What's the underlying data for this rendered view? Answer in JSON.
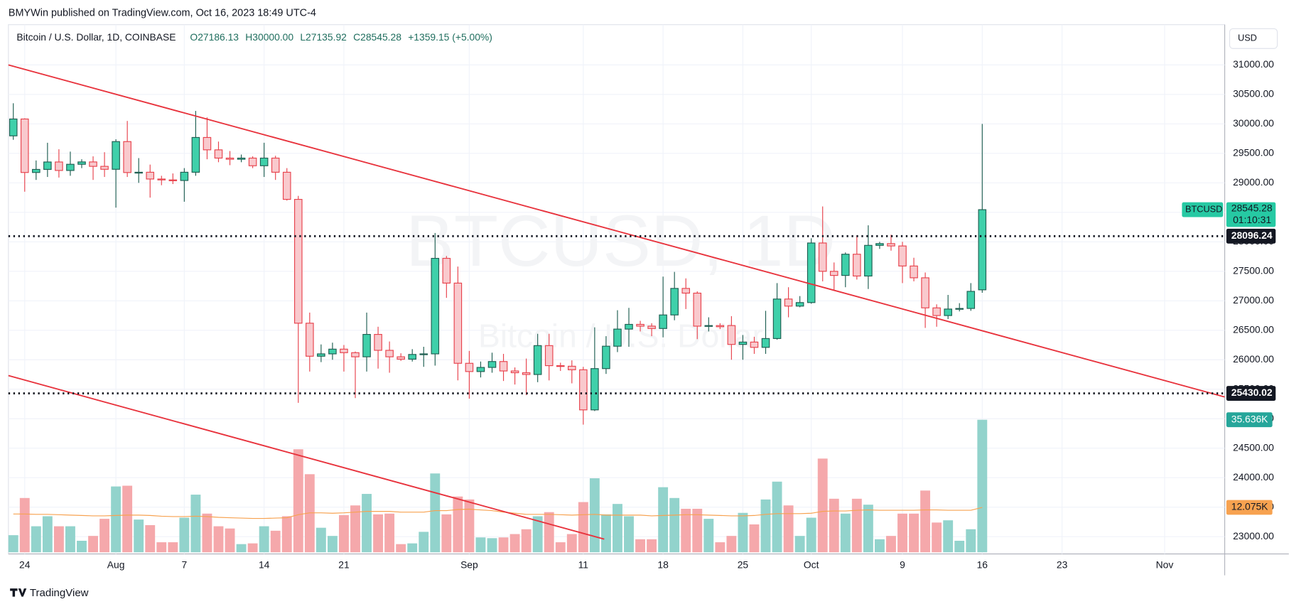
{
  "header": {
    "published": "BMYWin published on TradingView.com, Oct 16, 2023 18:49 UTC-4",
    "brand": "TradingView",
    "currency": "USD"
  },
  "chart_data": {
    "type": "candlestick",
    "legend_title": "Bitcoin / U.S. Dollar, 1D, COINBASE",
    "legend_values": [
      "O27186.13",
      "H30000.00",
      "L27135.92",
      "C28545.28",
      "+1359.15 (+5.00%)"
    ],
    "watermark": [
      "BTCUSD, 1D",
      "Bitcoin / U.S. Dollar"
    ],
    "symbol": "BTCUSD",
    "countdown": "01:10:31",
    "up_color": "#3fd0aa",
    "down_color": "#f9c9cd",
    "up_border": "#1f5f52",
    "down_border": "#e8434d",
    "volume_up_color": "#92d3cc",
    "volume_down_color": "#f5a8ab",
    "ma_color": "#f7a250",
    "xlim": [
      -0.43,
      106.27
    ],
    "xticks": [
      {
        "value": 1,
        "label": "24"
      },
      {
        "value": 9,
        "label": "Aug"
      },
      {
        "value": 15,
        "label": "7"
      },
      {
        "value": 22,
        "label": "14"
      },
      {
        "value": 29,
        "label": "21"
      },
      {
        "value": 40,
        "label": "Sep"
      },
      {
        "value": 50,
        "label": "11"
      },
      {
        "value": 57,
        "label": "18"
      },
      {
        "value": 64,
        "label": "25"
      },
      {
        "value": 70,
        "label": "Oct"
      },
      {
        "value": 78,
        "label": "9"
      },
      {
        "value": 85,
        "label": "16"
      },
      {
        "value": 92,
        "label": "23"
      },
      {
        "value": 101,
        "label": "Nov"
      }
    ],
    "ylim": [
      22707,
      31683
    ],
    "yticks": [
      {
        "value": 23000,
        "label": "23000.00"
      },
      {
        "value": 23500,
        "label": "23500.00"
      },
      {
        "value": 24000,
        "label": "24000.00"
      },
      {
        "value": 24500,
        "label": "24500.00"
      },
      {
        "value": 25000,
        "label": "25000.00"
      },
      {
        "value": 25500,
        "label": "25500.00"
      },
      {
        "value": 26000,
        "label": "26000.00"
      },
      {
        "value": 26500,
        "label": "26500.00"
      },
      {
        "value": 27000,
        "label": "27000.00"
      },
      {
        "value": 27500,
        "label": "27500.00"
      },
      {
        "value": 28000,
        "label": "28000.00"
      },
      {
        "value": 28500,
        "label": "28500.00"
      },
      {
        "value": 29000,
        "label": "29000.00"
      },
      {
        "value": 29500,
        "label": "29500.00"
      },
      {
        "value": 30000,
        "label": "30000.00"
      },
      {
        "value": 30500,
        "label": "30500.00"
      },
      {
        "value": 31000,
        "label": "31000.00"
      }
    ],
    "grid": true,
    "price_lines": [
      28096.24,
      25430.02
    ],
    "open": [
      29797,
      30083,
      29176,
      29228,
      29354,
      29210,
      29315,
      29355,
      29280,
      29230,
      29700,
      29175,
      29180,
      29065,
      29050,
      29040,
      29180,
      29770,
      29560,
      29420,
      29400,
      29420,
      29290,
      29420,
      29180,
      28720,
      26620,
      26060,
      26100,
      26180,
      26120,
      26050,
      26430,
      26160,
      26050,
      26010,
      26090,
      26100,
      27720,
      27300,
      25940,
      25800,
      25870,
      25970,
      25810,
      25780,
      25750,
      26240,
      25900,
      25890,
      25830,
      25150,
      25850,
      26230,
      26520,
      26600,
      26570,
      26530,
      26760,
      27210,
      27130,
      26570,
      26580,
      26580,
      26260,
      26300,
      26210,
      26360,
      27030,
      26910,
      26970,
      27980,
      27500,
      27430,
      27790,
      27420,
      27940,
      27970,
      27930,
      27590,
      27390,
      26880,
      26750,
      26860,
      26870,
      27186.13
    ],
    "high": [
      30350,
      30095,
      29380,
      29680,
      29570,
      29530,
      29400,
      29450,
      29520,
      29740,
      30050,
      29420,
      29310,
      29120,
      29160,
      29250,
      30220,
      30110,
      29700,
      29540,
      29480,
      29450,
      29680,
      29460,
      29250,
      28780,
      26800,
      26260,
      26290,
      26250,
      26140,
      26800,
      26560,
      26310,
      26110,
      26180,
      26220,
      28150,
      27760,
      27580,
      26150,
      25970,
      26120,
      26100,
      25870,
      26020,
      26440,
      26440,
      25950,
      25990,
      25880,
      26550,
      26400,
      26840,
      26880,
      26660,
      26620,
      27410,
      27490,
      27380,
      27160,
      26720,
      26620,
      26740,
      26420,
      26390,
      26830,
      27300,
      27230,
      27080,
      28060,
      28600,
      27650,
      27820,
      28110,
      28280,
      28000,
      28120,
      28000,
      27730,
      27480,
      26940,
      27100,
      26960,
      27300,
      30000
    ],
    "low": [
      29730,
      28850,
      29050,
      29100,
      29090,
      29120,
      29250,
      29050,
      29100,
      28580,
      29100,
      29000,
      28750,
      28960,
      28980,
      28680,
      29120,
      29400,
      29350,
      29300,
      29350,
      29250,
      29100,
      29050,
      28700,
      25270,
      25800,
      25960,
      26000,
      25800,
      25350,
      25800,
      25850,
      25780,
      25980,
      25970,
      25880,
      25900,
      27050,
      25650,
      25340,
      25700,
      25780,
      25640,
      25580,
      25400,
      25620,
      25650,
      25810,
      25600,
      24900,
      25130,
      25760,
      26130,
      26220,
      26480,
      26400,
      26380,
      26670,
      26860,
      26350,
      26480,
      26520,
      26000,
      26000,
      26100,
      26100,
      26340,
      26720,
      26890,
      26950,
      27330,
      27170,
      27230,
      27360,
      27200,
      27880,
      27850,
      27300,
      27330,
      26540,
      26560,
      26690,
      26820,
      26830,
      27135.92
    ],
    "close": [
      30083,
      29176,
      29228,
      29354,
      29210,
      29315,
      29355,
      29280,
      29230,
      29700,
      29175,
      29180,
      29065,
      29050,
      29040,
      29180,
      29770,
      29560,
      29420,
      29400,
      29420,
      29290,
      29420,
      29180,
      28720,
      26620,
      26060,
      26100,
      26180,
      26120,
      26050,
      26430,
      26160,
      26050,
      26010,
      26090,
      26100,
      27720,
      27300,
      25940,
      25800,
      25870,
      25970,
      25810,
      25780,
      25750,
      26240,
      25900,
      25890,
      25830,
      25150,
      25850,
      26230,
      26520,
      26600,
      26570,
      26530,
      26760,
      27210,
      27130,
      26570,
      26580,
      26560,
      26260,
      26300,
      26210,
      26360,
      27030,
      26910,
      26970,
      27980,
      27500,
      27430,
      27790,
      27420,
      27940,
      27970,
      27930,
      27590,
      27390,
      26880,
      26750,
      26860,
      26870,
      27160,
      28545.28
    ],
    "volume_ylim": [
      0,
      40
    ],
    "volume": [
      4.6,
      14.6,
      7,
      9.7,
      7,
      7,
      3.1,
      4.4,
      9,
      17.7,
      17.9,
      8.8,
      7.3,
      2.7,
      2.7,
      9.3,
      15.5,
      10.4,
      7,
      6.4,
      2.2,
      2.4,
      7,
      5.8,
      9.7,
      27.7,
      21,
      6.6,
      4.4,
      10,
      12.6,
      15.7,
      10.2,
      10.4,
      2.2,
      2.4,
      5.5,
      21.2,
      10.2,
      15,
      14.2,
      4,
      3.8,
      4,
      4.9,
      6.2,
      9.7,
      10.8,
      2.7,
      4.9,
      13.5,
      19.9,
      10.2,
      13,
      9.7,
      3.5,
      3.5,
      17.5,
      14.6,
      11.7,
      11.7,
      9,
      2.7,
      4.4,
      10.6,
      7.5,
      14.2,
      19,
      12.6,
      4.4,
      9.3,
      25.2,
      14.4,
      10.4,
      14.4,
      12.8,
      3.5,
      4.4,
      10.4,
      10.4,
      16.6,
      8,
      8.6,
      3.1,
      6.2,
      35.636
    ],
    "volume_ma": [
      10.3,
      10.3,
      10.2,
      10.2,
      10.1,
      10.0,
      9.9,
      9.8,
      9.8,
      9.9,
      10.0,
      10.0,
      9.9,
      9.7,
      9.6,
      9.6,
      9.7,
      9.6,
      9.4,
      9.3,
      9.2,
      9.1,
      9.1,
      9.2,
      9.3,
      10.1,
      10.6,
      10.6,
      10.5,
      10.6,
      10.8,
      11.0,
      11.0,
      11.0,
      10.8,
      10.8,
      10.8,
      11.2,
      11.2,
      11.5,
      11.6,
      11.4,
      11.2,
      10.8,
      10.5,
      10.2,
      10.2,
      10.2,
      10.1,
      10.0,
      10.1,
      10.2,
      10.0,
      10.0,
      10.0,
      10.0,
      9.8,
      9.9,
      10.0,
      10.1,
      10.1,
      10.0,
      9.9,
      9.8,
      9.8,
      9.9,
      10.2,
      10.4,
      10.4,
      10.4,
      10.5,
      11.0,
      11.1,
      11.1,
      11.3,
      11.4,
      11.3,
      11.3,
      11.3,
      11.3,
      11.4,
      11.4,
      11.3,
      11.3,
      11.3,
      12.075
    ],
    "volume_label": "35.636K",
    "ma_label": "12.075K"
  }
}
